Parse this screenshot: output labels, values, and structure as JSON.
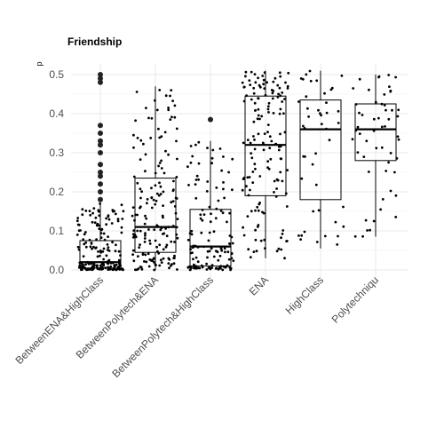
{
  "chart_data": {
    "type": "box",
    "title": "Friendship",
    "ylabel": "p",
    "xlabel": "",
    "ylim": [
      -0.01,
      0.52
    ],
    "yticks": [
      "0.0",
      "0.1",
      "0.2",
      "0.3",
      "0.4",
      "0.5"
    ],
    "grid": true,
    "jitter_points": true,
    "categories": [
      "BetweenENA&HighClass",
      "BetweenPolytech&ENA",
      "BetweenPolytech&HighClass",
      "ENA",
      "HighClass",
      "Polytechniqu"
    ],
    "boxes": [
      {
        "q1": 0.005,
        "median": 0.02,
        "q3": 0.075,
        "whisker_low": 0.0,
        "whisker_high": 0.17,
        "n_points": 180,
        "outliers": [
          0.18,
          0.2,
          0.22,
          0.24,
          0.25,
          0.27,
          0.3,
          0.32,
          0.33,
          0.35,
          0.37,
          0.48,
          0.49,
          0.5
        ]
      },
      {
        "q1": 0.045,
        "median": 0.11,
        "q3": 0.235,
        "whisker_low": 0.0,
        "whisker_high": 0.47,
        "n_points": 170,
        "outliers": []
      },
      {
        "q1": 0.01,
        "median": 0.06,
        "q3": 0.155,
        "whisker_low": 0.0,
        "whisker_high": 0.33,
        "n_points": 130,
        "outliers": [
          0.385
        ]
      },
      {
        "q1": 0.19,
        "median": 0.32,
        "q3": 0.445,
        "whisker_low": 0.03,
        "whisker_high": 0.51,
        "n_points": 150,
        "outliers": []
      },
      {
        "q1": 0.18,
        "median": 0.36,
        "q3": 0.435,
        "whisker_low": 0.055,
        "whisker_high": 0.51,
        "n_points": 45,
        "outliers": []
      },
      {
        "q1": 0.28,
        "median": 0.36,
        "q3": 0.425,
        "whisker_low": 0.085,
        "whisker_high": 0.5,
        "n_points": 55,
        "outliers": []
      }
    ]
  }
}
